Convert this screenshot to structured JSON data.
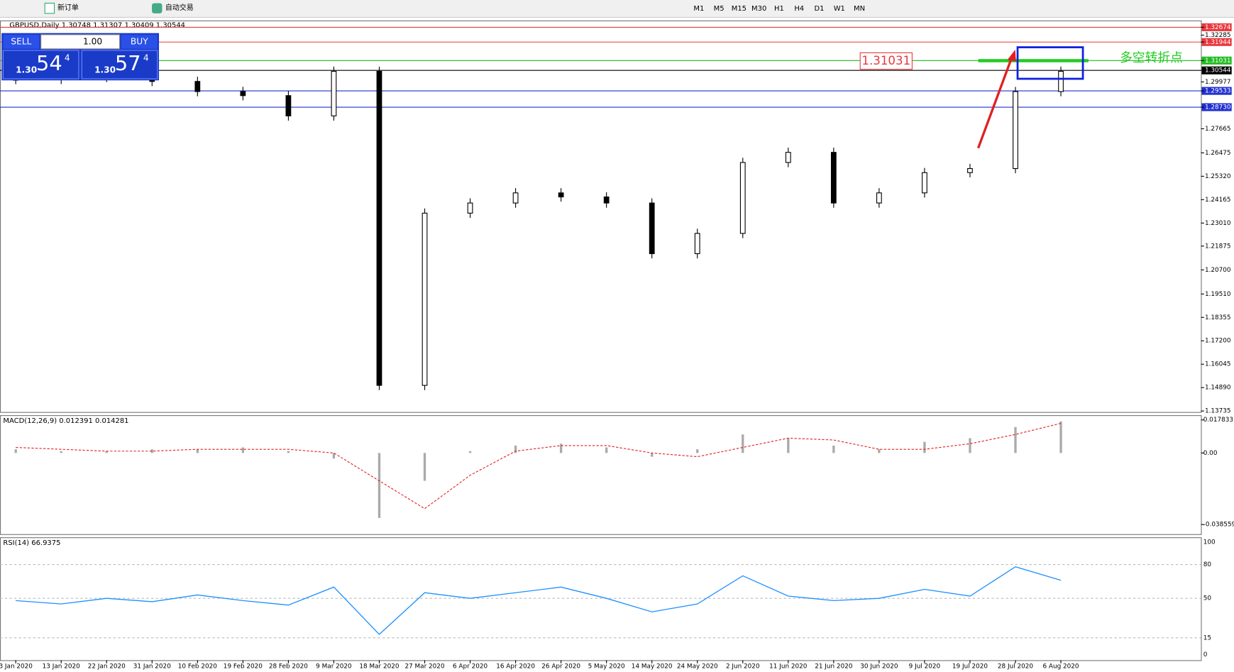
{
  "toolbar": {
    "new_order": "新订单",
    "auto_trade": "自动交易",
    "timeframes": [
      "M1",
      "M5",
      "M15",
      "M30",
      "H1",
      "H4",
      "D1",
      "W1",
      "MN"
    ]
  },
  "trade_panel": {
    "sell": "SELL",
    "lots": "1.00",
    "buy": "BUY",
    "sell_price": {
      "prefix": "1.30",
      "pips": "54",
      "point": "4"
    },
    "buy_price": {
      "prefix": "1.30",
      "pips": "57",
      "point": "4"
    }
  },
  "main_chart": {
    "symbol_info": "GBPUSD,Daily  1.30748 1.31307 1.30409 1.30544",
    "price_axis": [
      {
        "value": 1.32674,
        "label": "1.32674",
        "highlight": "#e8383d"
      },
      {
        "value": 1.32285,
        "label": "1.32285"
      },
      {
        "value": 1.31944,
        "label": "1.31944",
        "highlight": "#e8383d"
      },
      {
        "value": 1.31031,
        "label": "1.31031",
        "highlight": "#22bb22"
      },
      {
        "value": 1.30544,
        "label": "1.30544",
        "highlight": "#000000"
      },
      {
        "value": 1.29977,
        "label": "1.29977"
      },
      {
        "value": 1.29533,
        "label": "1.29533",
        "highlight": "#2030d0"
      },
      {
        "value": 1.2873,
        "label": "1.28730",
        "highlight": "#2030d0"
      },
      {
        "value": 1.27665,
        "label": "1.27665"
      },
      {
        "value": 1.26475,
        "label": "1.26475"
      },
      {
        "value": 1.2532,
        "label": "1.25320"
      },
      {
        "value": 1.24165,
        "label": "1.24165"
      },
      {
        "value": 1.2301,
        "label": "1.23010"
      },
      {
        "value": 1.21875,
        "label": "1.21875"
      },
      {
        "value": 1.207,
        "label": "1.20700"
      },
      {
        "value": 1.1951,
        "label": "1.19510"
      },
      {
        "value": 1.18355,
        "label": "1.18355"
      },
      {
        "value": 1.172,
        "label": "1.17200"
      },
      {
        "value": 1.16045,
        "label": "1.16045"
      },
      {
        "value": 1.1489,
        "label": "1.14890"
      },
      {
        "value": 1.13735,
        "label": "1.13735"
      }
    ],
    "annotation_price": "1.31031",
    "annotation_text": "多空转折点",
    "closes": [
      1.301,
      1.302,
      1.306,
      1.3,
      1.295,
      1.293,
      1.283,
      1.305,
      1.15,
      1.235,
      1.24,
      1.245,
      1.243,
      1.24,
      1.215,
      1.225,
      1.26,
      1.265,
      1.24,
      1.245,
      1.255,
      1.257,
      1.295,
      1.305
    ]
  },
  "macd": {
    "label": "MACD(12,26,9) 0.012391 0.014281",
    "axis": [
      {
        "value": 0.017833,
        "label": "0.017833"
      },
      {
        "value": 0,
        "label": "0.00"
      },
      {
        "value": -0.038559,
        "label": "-0.038559"
      }
    ],
    "histogram": [
      0.002,
      0.001,
      0.001,
      0.002,
      0.002,
      0.003,
      0.001,
      -0.003,
      -0.035,
      -0.015,
      0.001,
      0.004,
      0.005,
      0.003,
      -0.002,
      0.002,
      0.01,
      0.008,
      0.004,
      0.002,
      0.006,
      0.008,
      0.014,
      0.017
    ],
    "signal": [
      0.003,
      0.002,
      0.001,
      0.001,
      0.002,
      0.002,
      0.002,
      0.0,
      -0.015,
      -0.03,
      -0.012,
      0.001,
      0.004,
      0.004,
      0.0,
      -0.002,
      0.003,
      0.008,
      0.007,
      0.002,
      0.002,
      0.005,
      0.01,
      0.016
    ]
  },
  "rsi": {
    "label": "RSI(14) 66.9375",
    "axis": [
      100,
      80,
      50,
      15,
      0
    ],
    "values": [
      48,
      45,
      50,
      47,
      53,
      48,
      44,
      60,
      18,
      55,
      50,
      55,
      60,
      50,
      38,
      45,
      70,
      52,
      48,
      50,
      58,
      52,
      78,
      66
    ]
  },
  "dates": [
    "3 Jan 2020",
    "13 Jan 2020",
    "22 Jan 2020",
    "31 Jan 2020",
    "10 Feb 2020",
    "19 Feb 2020",
    "28 Feb 2020",
    "9 Mar 2020",
    "18 Mar 2020",
    "27 Mar 2020",
    "6 Apr 2020",
    "16 Apr 2020",
    "26 Apr 2020",
    "5 May 2020",
    "14 May 2020",
    "24 May 2020",
    "2 Jun 2020",
    "11 Jun 2020",
    "21 Jun 2020",
    "30 Jun 2020",
    "9 Jul 2020",
    "19 Jul 2020",
    "28 Jul 2020",
    "6 Aug 2020"
  ]
}
